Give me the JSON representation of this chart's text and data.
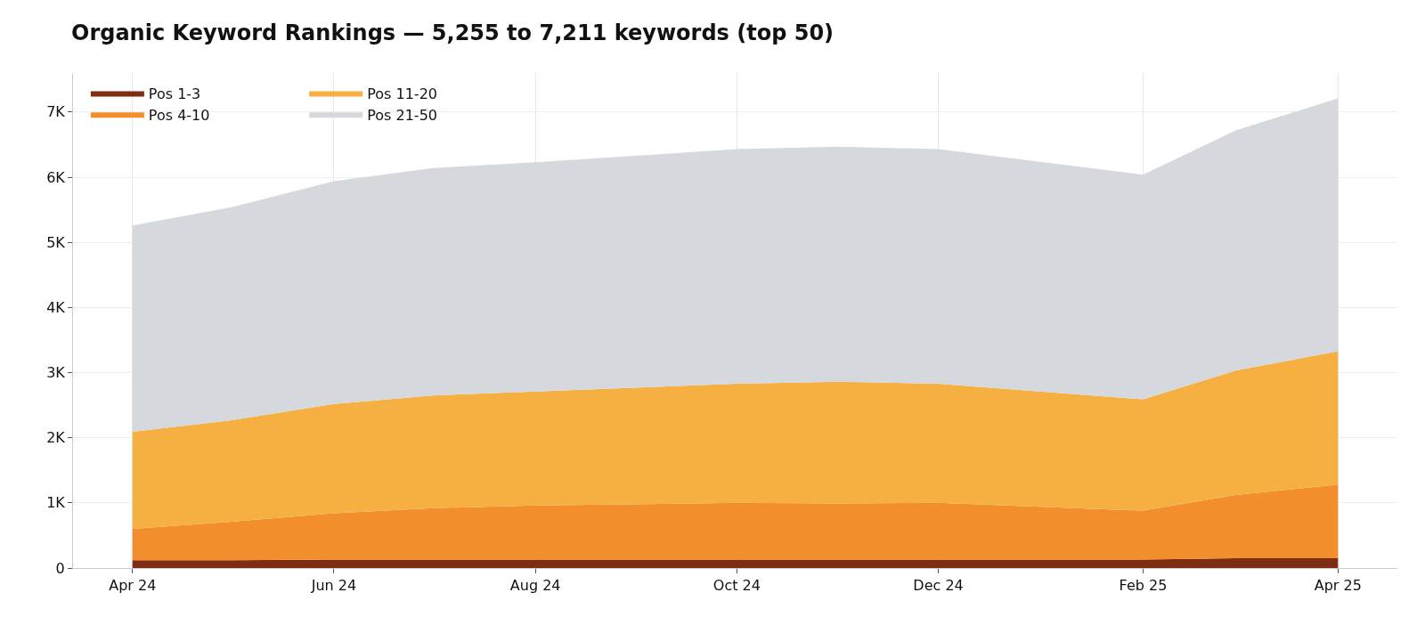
{
  "chart_data": {
    "type": "area",
    "stacked": true,
    "title": "Organic Keyword Rankings — 5,255 to 7,211 keywords (top 50)",
    "x": [
      "2024-04",
      "2024-05",
      "2024-06",
      "2024-07",
      "2024-08",
      "2024-10",
      "2024-11",
      "2024-12",
      "2025-02",
      "2025-03",
      "2025-04"
    ],
    "series": [
      {
        "name": "Pos 1-3",
        "color": "#7f2d12",
        "values": [
          120,
          120,
          130,
          130,
          130,
          130,
          130,
          130,
          130,
          150,
          150
        ]
      },
      {
        "name": "Pos 4-10",
        "color": "#f28e2b",
        "values": [
          480,
          590,
          710,
          790,
          830,
          870,
          860,
          870,
          750,
          970,
          1130
        ]
      },
      {
        "name": "Pos 11-20",
        "color": "#f5b041",
        "values": [
          1490,
          1560,
          1680,
          1730,
          1750,
          1830,
          1870,
          1830,
          1710,
          1910,
          2050
        ]
      },
      {
        "name": "Pos 21-50",
        "color": "#d5d8dc",
        "values": [
          3170,
          3270,
          3420,
          3490,
          3520,
          3600,
          3610,
          3600,
          3450,
          3690,
          3880
        ]
      }
    ],
    "xlim": [
      "2024-03-14",
      "2025-04-19"
    ],
    "xticks": [
      {
        "value": "2024-04",
        "label": "Apr 24"
      },
      {
        "value": "2024-06",
        "label": "Jun 24"
      },
      {
        "value": "2024-08",
        "label": "Aug 24"
      },
      {
        "value": "2024-10",
        "label": "Oct 24"
      },
      {
        "value": "2024-12",
        "label": "Dec 24"
      },
      {
        "value": "2025-02",
        "label": "Feb 25"
      },
      {
        "value": "2025-04",
        "label": "Apr 25"
      }
    ],
    "ylim": [
      0,
      7600
    ],
    "yticks": [
      0,
      {
        "value": 1000,
        "label": "1K"
      },
      {
        "value": 2000,
        "label": "2K"
      },
      {
        "value": 3000,
        "label": "3K"
      },
      {
        "value": 4000,
        "label": "4K"
      },
      {
        "value": 5000,
        "label": "5K"
      },
      {
        "value": 6000,
        "label": "6K"
      },
      {
        "value": 7000,
        "label": "7K"
      }
    ],
    "grid": true,
    "legend": "top left"
  }
}
